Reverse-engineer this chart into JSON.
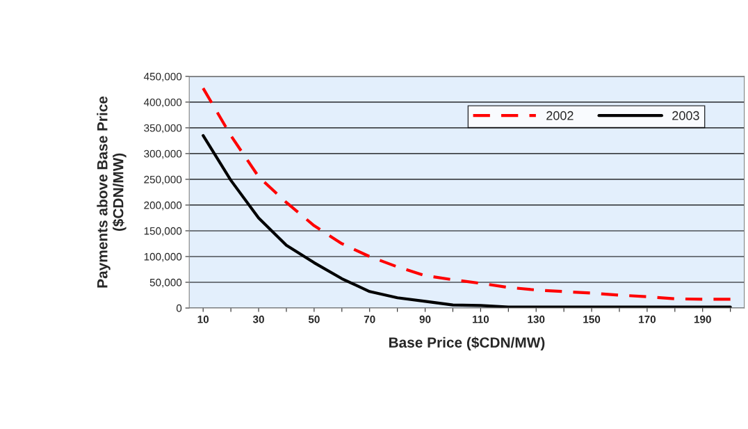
{
  "chart_data": {
    "type": "line",
    "xlabel": "Base Price ($CDN/MW)",
    "ylabel": "Payments above Base Price\n($CDN/MW)",
    "categories": [
      "10",
      null,
      "30",
      null,
      "50",
      null,
      "70",
      null,
      "90",
      null,
      "110",
      null,
      "130",
      null,
      "150",
      null,
      "170",
      null,
      "190",
      null
    ],
    "series": [
      {
        "name": "2002",
        "color": "#ff0000",
        "line_style": "dashed",
        "values": [
          427000,
          335000,
          255000,
          205000,
          160000,
          125000,
          100000,
          80000,
          63000,
          55000,
          48000,
          40000,
          35000,
          32000,
          29000,
          25000,
          22000,
          18000,
          17000,
          17000
        ]
      },
      {
        "name": "2003",
        "color": "#000000",
        "line_style": "solid",
        "values": [
          335000,
          248000,
          175000,
          122000,
          88000,
          57000,
          32000,
          20000,
          13000,
          6000,
          5000,
          2000,
          2000,
          2000,
          2000,
          2000,
          2000,
          2000,
          2000,
          2000
        ]
      }
    ],
    "ylim": [
      0,
      450000
    ],
    "yticks": [
      0,
      {
        "value": 50000,
        "label": "50,000"
      },
      {
        "value": 100000,
        "label": "100,000"
      },
      {
        "value": 150000,
        "label": "150,000"
      },
      {
        "value": 200000,
        "label": "200,000"
      },
      {
        "value": 250000,
        "label": "250,000"
      },
      {
        "value": 300000,
        "label": "300,000"
      },
      {
        "value": 350000,
        "label": "350,000"
      },
      {
        "value": 400000,
        "label": "400,000"
      },
      {
        "value": 450000,
        "label": "450,000"
      }
    ],
    "grid": "y",
    "legend": "top right",
    "marker": "none"
  }
}
